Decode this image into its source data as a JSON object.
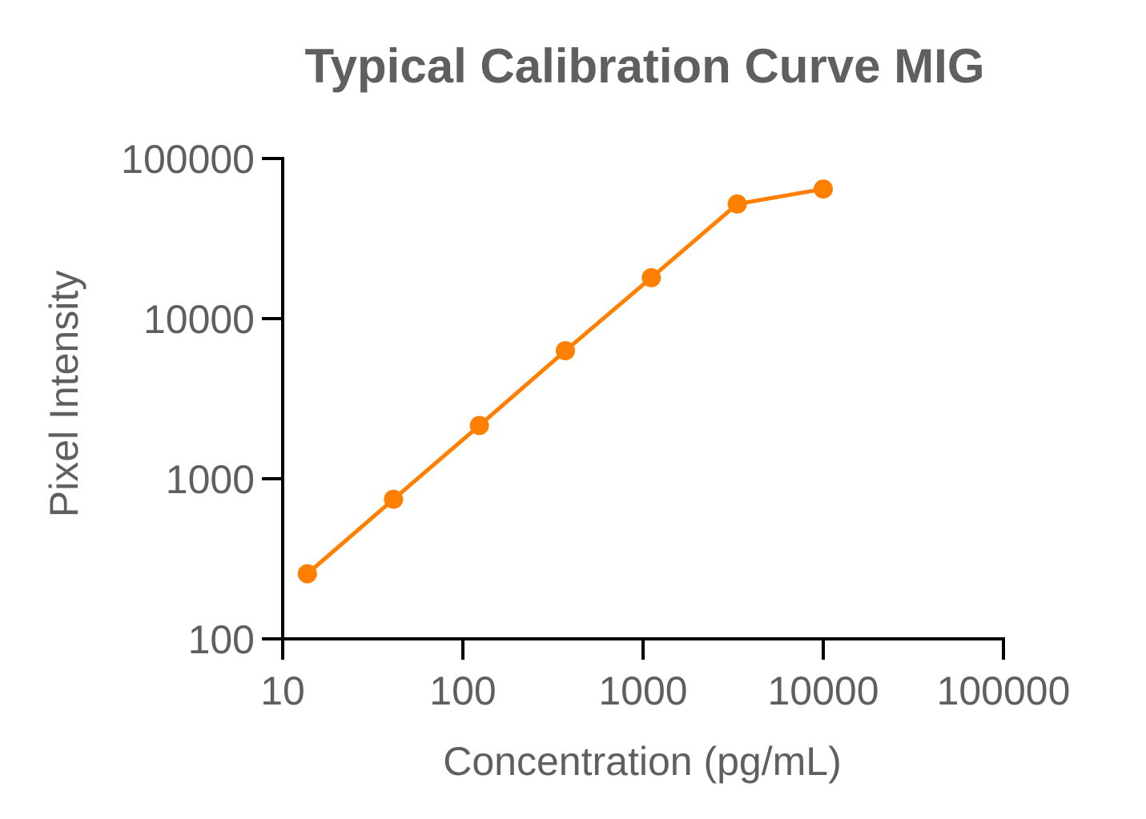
{
  "chart_data": {
    "type": "line",
    "title": "Typical Calibration Curve MIG",
    "xlabel": "Concentration (pg/mL)",
    "ylabel": "Pixel Intensity",
    "x_scale": "log",
    "y_scale": "log",
    "xlim": [
      10,
      100000
    ],
    "ylim": [
      100,
      100000
    ],
    "x_ticks": [
      "10",
      "100",
      "1000",
      "10000",
      "100000"
    ],
    "y_ticks": [
      "100",
      "1000",
      "10000",
      "100000"
    ],
    "grid": false,
    "legend": "none",
    "series": [
      {
        "color": "#ff7f00",
        "marker": "circle",
        "x": [
          13.7,
          41.2,
          123.5,
          370.4,
          1111,
          3333,
          10000
        ],
        "y": [
          255,
          745,
          2150,
          6300,
          18000,
          52000,
          64500
        ]
      }
    ]
  }
}
